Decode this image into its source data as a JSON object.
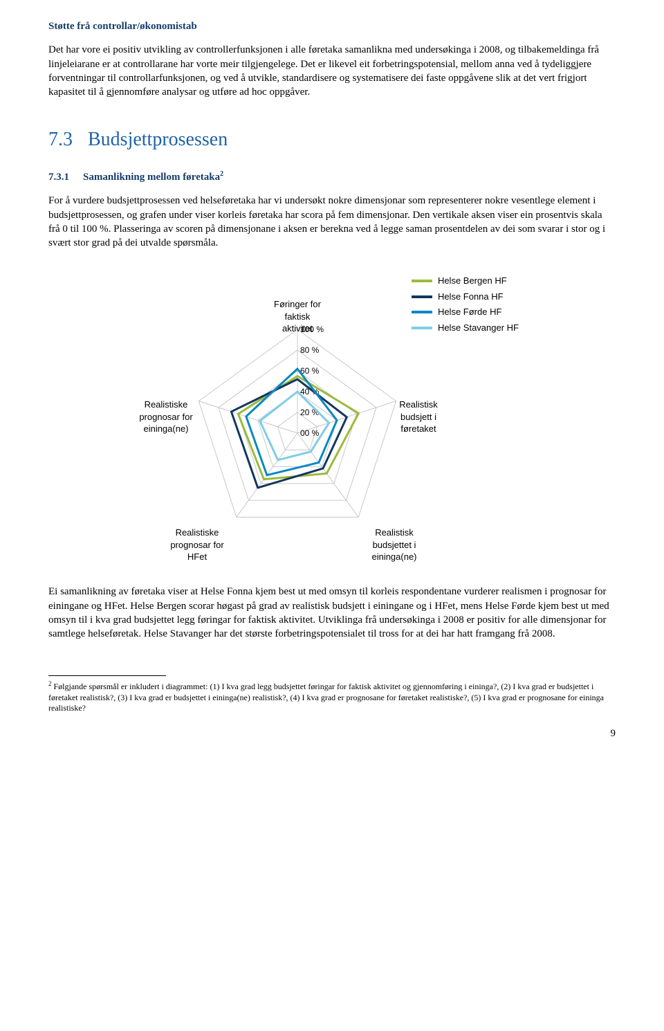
{
  "section_title": "Støtte frå controllar/økonomistab",
  "para1": "Det har vore ei positiv utvikling av controllerfunksjonen i alle føretaka samanlikna med undersøkinga i 2008, og tilbakemeldinga frå linjeleiarane er at controllarane har vorte meir tilgjengelege. Det er likevel eit forbetringspotensial, mellom anna ved å tydeliggjere forventningar til controllarfunksjonen, og ved å utvikle, standardisere og systematisere dei faste oppgåvene slik at det vert frigjort kapasitet til å gjennomføre analysar og utføre ad hoc oppgåver.",
  "h2_num": "7.3",
  "h2_text": "Budsjettprosessen",
  "h3_num": "7.3.1",
  "h3_text": "Samanlikning mellom føretaka",
  "h3_fn": "2",
  "para2": "For å vurdere budsjettprosessen ved helseføretaka har vi undersøkt nokre dimensjonar som representerer nokre vesentlege element i budsjettprosessen, og grafen under viser korleis føretaka har scora på fem dimensjonar. Den vertikale aksen viser ein prosentvis skala frå 0 til 100 %. Plasseringa av scoren på dimensjonane i aksen er berekna ved å legge saman prosentdelen av dei som svarar i stor og i svært stor grad på dei utvalde spørsmåla.",
  "para3": "Ei samanlikning av føretaka viser at Helse Fonna kjem best ut med omsyn til korleis respondentane vurderer realismen i prognosar for einingane og HFet. Helse Bergen scorar høgast på grad av realistisk budsjett i einingane og i HFet, mens Helse Førde kjem best ut med omsyn til i kva grad budsjettet legg føringar for faktisk aktivitet. Utviklinga frå undersøkinga i 2008 er positiv for alle dimensjonar for samtlege helseføretak. Helse Stavanger har det største forbetringspotensialet til tross for at dei har hatt framgang frå 2008.",
  "footnote_num": "2",
  "footnote_text": "Følgjande spørsmål er inkludert i diagrammet: (1) I kva grad legg budsjettet føringar for faktisk aktivitet og gjennomføring i eininga?, (2) I kva grad er budsjettet i føretaket realistisk?, (3) I kva grad er budsjettet i eininga(ne) realistisk?, (4) I kva grad er prognosane for føretaket realistiske?, (5) I kva grad er prognosane for eininga realistiske?",
  "pagenum": "9",
  "chart": {
    "type": "radar",
    "axes": [
      "Føringer for faktisk aktivitet",
      "Realistisk budsjett i føretaket",
      "Realistisk budsjettet i eininga(ne)",
      "Realistiske prognosar for HFet",
      "Realistiske prognosar for eininga(ne)"
    ],
    "ticks": [
      "00 %",
      "20 %",
      "40 %",
      "60 %",
      "80 %",
      "100 %"
    ],
    "tick_values": [
      0,
      20,
      40,
      60,
      80,
      100
    ],
    "grid_color": "#c8c8c8",
    "axis_line_color": "#c8c8c8",
    "line_width": 3,
    "tick_fontsize": 12,
    "label_fontsize": 13,
    "series": [
      {
        "name": "Helse Bergen HF",
        "color": "#9bbb3c",
        "values": [
          55,
          62,
          48,
          55,
          60
        ]
      },
      {
        "name": "Helse Fonna HF",
        "color": "#14365e",
        "values": [
          52,
          50,
          42,
          65,
          67
        ]
      },
      {
        "name": "Helse Førde HF",
        "color": "#0a88c2",
        "values": [
          62,
          40,
          35,
          50,
          52
        ]
      },
      {
        "name": "Helse Stavanger HF",
        "color": "#7fcde6",
        "values": [
          40,
          32,
          22,
          32,
          38
        ]
      }
    ]
  }
}
